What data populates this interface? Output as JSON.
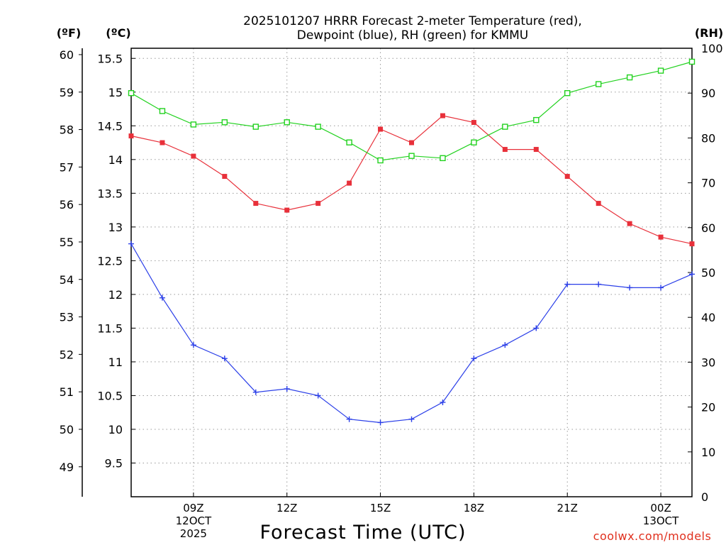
{
  "chart_data": {
    "type": "line",
    "title_lines": [
      "2025101207 HRRR Forecast 2-meter Temperature (red),",
      "Dewpoint (blue), RH (green) for KMMU"
    ],
    "unit_labels": {
      "fahrenheit": "(ºF)",
      "celsius": "(ºC)",
      "rh": "(RH)"
    },
    "xlabel": "Forecast Time (UTC)",
    "credit": "coolwx.com/models",
    "x_hours": [
      7,
      8,
      9,
      10,
      11,
      12,
      13,
      14,
      15,
      16,
      17,
      18,
      19,
      20,
      21,
      22,
      23,
      24,
      25
    ],
    "xlim": [
      7,
      25
    ],
    "x_ticks": [
      {
        "hour": 9,
        "lines": [
          "09Z",
          "12OCT",
          "2025"
        ]
      },
      {
        "hour": 12,
        "lines": [
          "12Z"
        ]
      },
      {
        "hour": 15,
        "lines": [
          "15Z"
        ]
      },
      {
        "hour": 18,
        "lines": [
          "18Z"
        ]
      },
      {
        "hour": 21,
        "lines": [
          "21Z"
        ]
      },
      {
        "hour": 24,
        "lines": [
          "00Z",
          "13OCT"
        ]
      }
    ],
    "celsius_axis": {
      "range": [
        9.0,
        15.65
      ],
      "ticks": [
        "9.5",
        "10",
        "10.5",
        "11",
        "11.5",
        "12",
        "12.5",
        "13",
        "13.5",
        "14",
        "14.5",
        "15",
        "15.5"
      ]
    },
    "fahrenheit_axis": {
      "ticks": [
        "49",
        "50",
        "51",
        "52",
        "53",
        "54",
        "55",
        "56",
        "57",
        "58",
        "59",
        "60"
      ]
    },
    "rh_axis": {
      "range": [
        0,
        100
      ],
      "ticks": [
        "0",
        "10",
        "20",
        "30",
        "40",
        "50",
        "60",
        "70",
        "80",
        "90",
        "100"
      ]
    },
    "series": [
      {
        "name": "2-meter Temperature",
        "color_name": "red",
        "color": "#e8303a",
        "axis": "celsius",
        "marker": "filled-square",
        "values": [
          14.35,
          14.25,
          14.05,
          13.75,
          13.35,
          13.25,
          13.35,
          13.65,
          14.45,
          14.25,
          14.65,
          14.55,
          14.15,
          14.15,
          13.75,
          13.35,
          13.05,
          12.85,
          12.75
        ]
      },
      {
        "name": "Dewpoint",
        "color_name": "blue",
        "color": "#2b3fe8",
        "axis": "celsius",
        "marker": "plus",
        "values": [
          12.75,
          11.95,
          11.25,
          11.05,
          10.55,
          10.6,
          10.5,
          10.15,
          10.1,
          10.15,
          10.4,
          11.05,
          11.25,
          11.5,
          12.15,
          12.15,
          12.1,
          12.1,
          12.3
        ]
      },
      {
        "name": "RH",
        "color_name": "green",
        "color": "#22d21f",
        "axis": "rh",
        "marker": "open-square",
        "values": [
          90,
          86,
          83,
          83.5,
          82.5,
          83.5,
          82.5,
          79,
          75,
          76,
          75.5,
          79,
          82.5,
          84,
          90,
          92,
          93.5,
          95,
          97
        ]
      }
    ]
  }
}
